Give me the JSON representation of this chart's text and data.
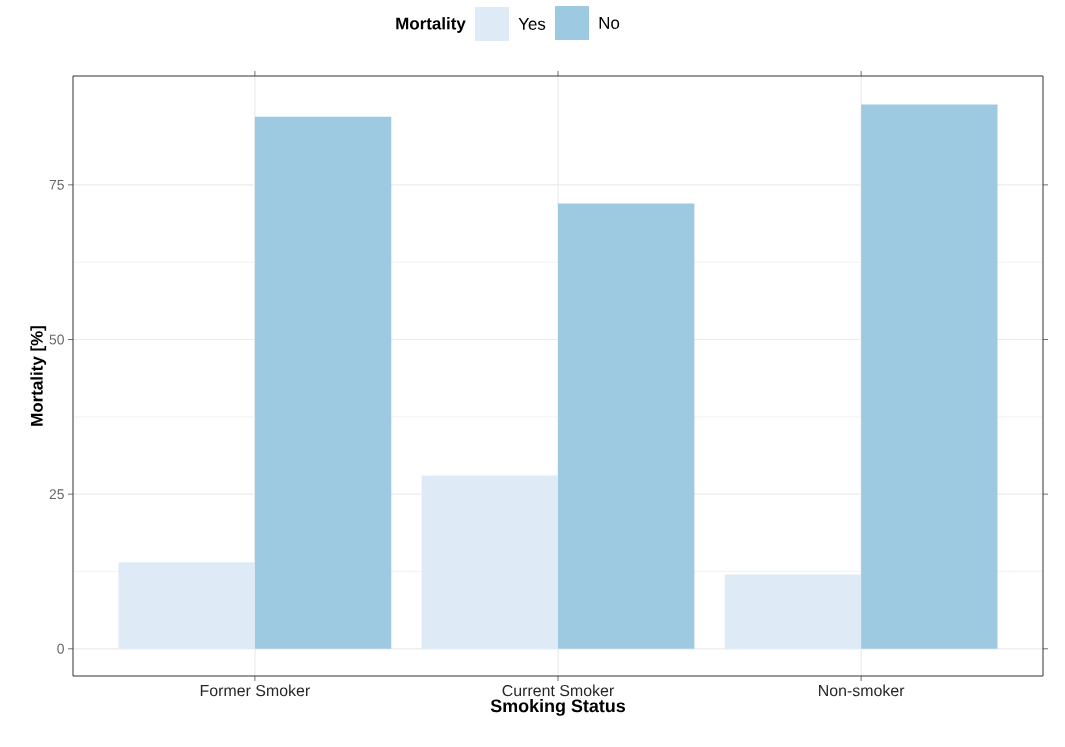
{
  "chart_data": {
    "type": "bar",
    "xlabel": "Smoking Status",
    "ylabel": "Mortality [%]",
    "legend_title": "Mortality",
    "categories": [
      "Former Smoker",
      "Current Smoker",
      "Non-smoker"
    ],
    "series": [
      {
        "name": "Yes",
        "color": "#deebf7",
        "values": [
          14,
          28,
          12
        ]
      },
      {
        "name": "No",
        "color": "#9ecae1",
        "values": [
          86,
          72,
          88
        ]
      }
    ],
    "ylim": [
      -4.4,
      92.6
    ],
    "yticks": [
      0,
      25,
      50,
      75
    ],
    "grid": true,
    "legend": "top"
  }
}
